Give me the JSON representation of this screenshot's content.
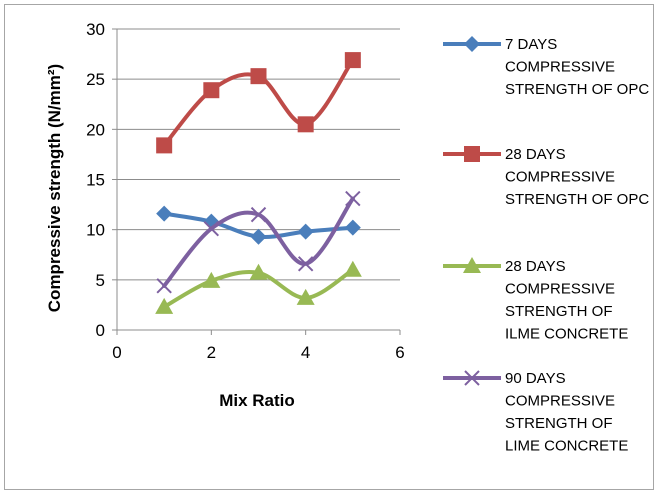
{
  "chart_data": {
    "type": "line",
    "title": "",
    "xlabel": "Mix Ratio",
    "ylabel": "Compressive strength (N/mm²)",
    "xlim": [
      0,
      6
    ],
    "ylim": [
      0,
      30
    ],
    "xticks": [
      "0",
      "2",
      "4",
      "6"
    ],
    "yticks": [
      "0",
      "5",
      "10",
      "15",
      "20",
      "25",
      "30"
    ],
    "grid": true,
    "legend_position": "right",
    "x": [
      1,
      2,
      3,
      4,
      5
    ],
    "series": [
      {
        "name": "7 DAYS COMPRESSIVE STRENGTH OF OPC",
        "legend_lines": [
          "7 DAYS",
          "COMPRESSIVE",
          "STRENGTH OF OPC"
        ],
        "values": [
          11.6,
          10.8,
          9.3,
          9.8,
          10.2
        ],
        "color": "#4a7ebb",
        "marker": "diamond"
      },
      {
        "name": "28 DAYS COMPRESSIVE STRENGTH OF OPC",
        "legend_lines": [
          "28 DAYS",
          "COMPRESSIVE",
          "STRENGTH OF OPC"
        ],
        "values": [
          18.4,
          23.9,
          25.3,
          20.5,
          26.9
        ],
        "color": "#be4b48",
        "marker": "square"
      },
      {
        "name": "28 DAYS COMPRESSIVE STRENGTH OF ILME CONCRETE",
        "legend_lines": [
          "28 DAYS",
          "COMPRESSIVE",
          "STRENGTH OF",
          "ILME CONCRETE"
        ],
        "values": [
          2.3,
          4.9,
          5.7,
          3.2,
          6.0
        ],
        "color": "#98b954",
        "marker": "triangle"
      },
      {
        "name": "90 DAYS COMPRESSIVE STRENGTH OF LIME CONCRETE",
        "legend_lines": [
          "90 DAYS",
          "COMPRESSIVE",
          "STRENGTH OF",
          "LIME CONCRETE"
        ],
        "values": [
          4.4,
          10.1,
          11.5,
          6.6,
          13.1
        ],
        "color": "#7d60a0",
        "marker": "x"
      }
    ]
  }
}
